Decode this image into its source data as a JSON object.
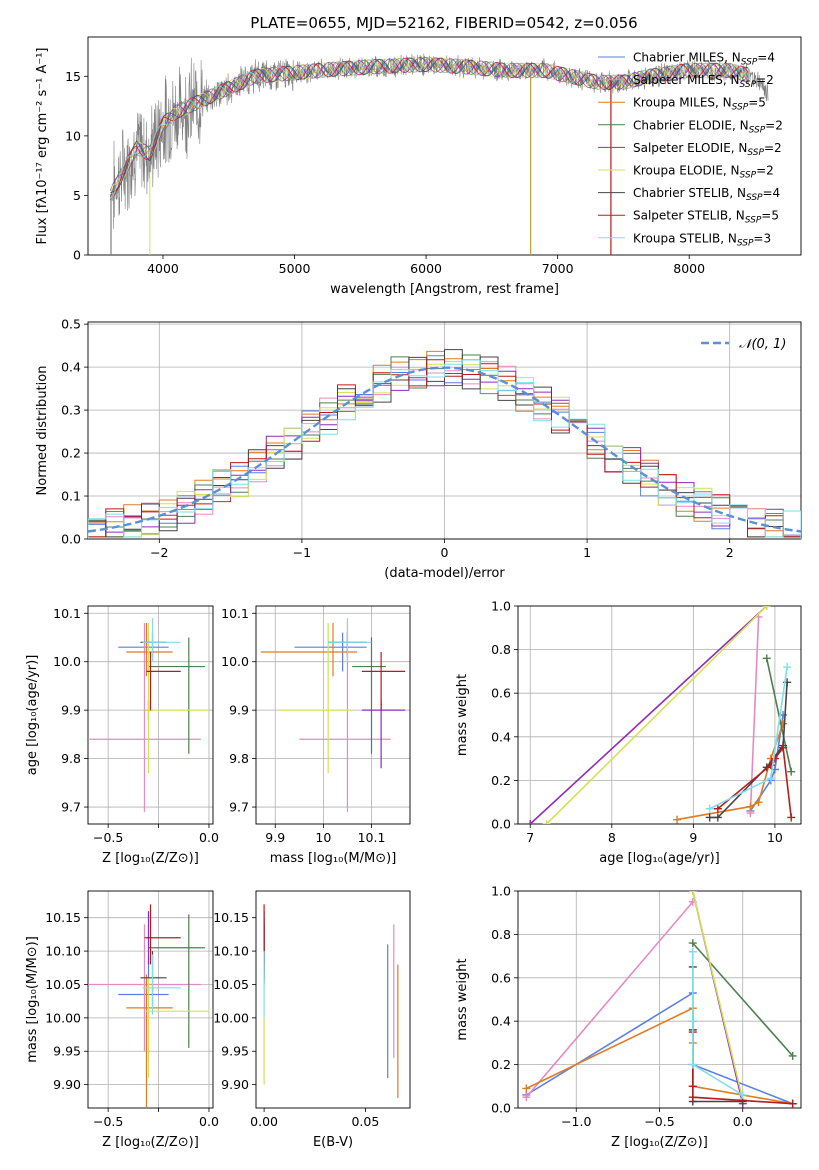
{
  "figure_title": "PLATE=0655, MJD=52162, FIBERID=0542, z=0.056",
  "colors": {
    "Chabrier MILES": "#5b7fe0",
    "Salpeter MILES": "#e78ac3",
    "Kroupa MILES": "#e07b25",
    "Chabrier ELODIE": "#4f7f4f",
    "Salpeter ELODIE": "#8e2db8",
    "Kroupa ELODIE": "#d4e157",
    "Chabrier STELIB": "#444444",
    "Salpeter STELIB": "#b71c1c",
    "Kroupa STELIB": "#80deea",
    "data": "#808080",
    "normal": "#5b8fd6"
  },
  "chart_data": [
    {
      "type": "line",
      "xlabel": "wavelength [Angstrom, rest frame]",
      "ylabel": "Flux [fλ10⁻¹⁷ erg cm⁻² s⁻¹ A⁻¹]",
      "xlim": [
        3430,
        8850
      ],
      "ylim": [
        0,
        18.3
      ],
      "xticks": [
        4000,
        5000,
        6000,
        7000,
        8000
      ],
      "yticks": [
        0,
        5,
        10,
        15
      ],
      "legend_position": "upper-right",
      "legend": [
        "Chabrier MILES, N_SSP=4",
        "Salpeter MILES, N_SSP=2",
        "Kroupa MILES, N_SSP=5",
        "Chabrier ELODIE, N_SSP=2",
        "Salpeter ELODIE, N_SSP=2",
        "Kroupa ELODIE, N_SSP=2",
        "Chabrier STELIB, N_SSP=4",
        "Salpeter STELIB, N_SSP=5",
        "Kroupa STELIB, N_SSP=3"
      ],
      "continuum": {
        "x": [
          3600,
          3700,
          3800,
          3900,
          4000,
          4100,
          4200,
          4300,
          4400,
          4500,
          4700,
          5000,
          5300,
          5600,
          6000,
          6300,
          6600,
          6900,
          7100,
          7300,
          7500,
          7700,
          8000,
          8300,
          8500,
          8600
        ],
        "y": [
          5,
          7,
          9,
          8.5,
          11,
          12,
          12.5,
          13,
          13.5,
          14,
          15,
          15.3,
          15.6,
          15.8,
          16,
          15.8,
          15.5,
          15.5,
          15,
          14.5,
          14.5,
          15,
          15.5,
          15.5,
          15,
          13.5
        ]
      },
      "gaps": [
        [
          6790,
          6800
        ],
        [
          7400,
          7410
        ]
      ]
    },
    {
      "type": "step",
      "xlabel": "(data-model)/error",
      "ylabel": "Normed distribution",
      "xlim": [
        -2.5,
        2.5
      ],
      "ylim": [
        0,
        0.505
      ],
      "xticks": [
        -2,
        -1,
        0,
        1,
        2
      ],
      "yticks": [
        0.0,
        0.1,
        0.2,
        0.3,
        0.4,
        0.5
      ],
      "grid": true,
      "bins": 40,
      "reference_curve": "N(0,1)",
      "legend": [
        "𝒩(0, 1)"
      ],
      "legend_position": "upper-right"
    },
    {
      "type": "scatter",
      "xlabel": "Z [log₁₀(Z/Z⊙)]",
      "ylabel": "age  [log₁₀(age/yr)]",
      "xlim": [
        -0.6,
        0.02
      ],
      "ylim": [
        9.665,
        10.115
      ],
      "xticks": [
        -0.5,
        -0.25,
        0.0
      ],
      "xticklabels": [
        "−0.5",
        "",
        "0.0"
      ],
      "yticks": [
        9.7,
        9.8,
        9.9,
        10.0,
        10.1
      ],
      "grid": true,
      "points": [
        {
          "model": "Chabrier MILES",
          "x": -0.3,
          "y": 10.03,
          "xerr": [
            0.15,
            0.1
          ],
          "yerr": [
            0.05,
            0.03
          ]
        },
        {
          "model": "Salpeter MILES",
          "x": -0.32,
          "y": 9.84,
          "xerr": [
            0.28,
            0.28
          ],
          "yerr": [
            0.15,
            0.24
          ]
        },
        {
          "model": "Kroupa MILES",
          "x": -0.31,
          "y": 10.02,
          "xerr": [
            0.1,
            0.13
          ],
          "yerr": [
            0.05,
            0.06
          ]
        },
        {
          "model": "Chabrier ELODIE",
          "x": -0.1,
          "y": 9.99,
          "xerr": [
            0.2,
            0.08
          ],
          "yerr": [
            0.18,
            0.06
          ]
        },
        {
          "model": "Salpeter ELODIE",
          "x": -0.3,
          "y": 9.9,
          "xerr": [
            0.02,
            0.02
          ],
          "yerr": [
            0.02,
            0.02
          ]
        },
        {
          "model": "Kroupa ELODIE",
          "x": -0.3,
          "y": 9.9,
          "xerr": [
            0.02,
            0.3
          ],
          "yerr": [
            0.13,
            0.18
          ]
        },
        {
          "model": "Chabrier STELIB",
          "x": -0.28,
          "y": 10.04,
          "xerr": [
            0.06,
            0.07
          ],
          "yerr": [
            0.03,
            0.02
          ]
        },
        {
          "model": "Salpeter STELIB",
          "x": -0.29,
          "y": 9.98,
          "xerr": [
            0.02,
            0.15
          ],
          "yerr": [
            0.08,
            0.04
          ]
        },
        {
          "model": "Kroupa STELIB",
          "x": -0.28,
          "y": 10.04,
          "xerr": [
            0.05,
            0.14
          ],
          "yerr": [
            0.04,
            0.05
          ]
        }
      ]
    },
    {
      "type": "scatter",
      "xlabel": "mass [log₁₀(M/M⊙)]",
      "ylabel": "",
      "xlim": [
        9.86,
        10.18
      ],
      "ylim": [
        9.665,
        10.115
      ],
      "xticks": [
        9.9,
        10.0,
        10.1
      ],
      "yticks": [
        9.7,
        9.8,
        9.9,
        10.0,
        10.1
      ],
      "grid": true,
      "points": [
        {
          "model": "Chabrier MILES",
          "x": 10.04,
          "y": 10.03,
          "xerr": [
            0.1,
            0.05
          ],
          "yerr": [
            0.05,
            0.03
          ]
        },
        {
          "model": "Salpeter MILES",
          "x": 10.05,
          "y": 9.84,
          "xerr": [
            0.1,
            0.09
          ],
          "yerr": [
            0.15,
            0.24
          ]
        },
        {
          "model": "Kroupa MILES",
          "x": 10.02,
          "y": 10.02,
          "xerr": [
            0.15,
            0.05
          ],
          "yerr": [
            0.05,
            0.06
          ]
        },
        {
          "model": "Chabrier ELODIE",
          "x": 10.1,
          "y": 9.99,
          "xerr": [
            0.04,
            0.03
          ],
          "yerr": [
            0.18,
            0.06
          ]
        },
        {
          "model": "Salpeter ELODIE",
          "x": 10.12,
          "y": 9.9,
          "xerr": [
            0.04,
            0.05
          ],
          "yerr": [
            0.12,
            0.02
          ]
        },
        {
          "model": "Kroupa ELODIE",
          "x": 10.01,
          "y": 9.9,
          "xerr": [
            0.1,
            0.05
          ],
          "yerr": [
            0.13,
            0.18
          ]
        },
        {
          "model": "Chabrier STELIB",
          "x": 10.05,
          "y": 10.04,
          "xerr": [
            0.04,
            0.04
          ],
          "yerr": [
            0.03,
            0.02
          ]
        },
        {
          "model": "Salpeter STELIB",
          "x": 10.12,
          "y": 9.98,
          "xerr": [
            0.04,
            0.05
          ],
          "yerr": [
            0.08,
            0.04
          ]
        },
        {
          "model": "Kroupa STELIB",
          "x": 10.05,
          "y": 10.04,
          "xerr": [
            0.04,
            0.05
          ],
          "yerr": [
            0.04,
            0.05
          ]
        }
      ]
    },
    {
      "type": "line",
      "xlabel": "age  [log₁₀(age/yr)]",
      "ylabel": "mass weight",
      "xlim": [
        6.85,
        10.32
      ],
      "ylim": [
        0,
        1.0
      ],
      "xticks": [
        7,
        8,
        9,
        10
      ],
      "yticks": [
        0.0,
        0.2,
        0.4,
        0.6,
        0.8,
        1.0
      ],
      "grid": true,
      "series": [
        {
          "name": "Chabrier MILES",
          "x": [
            9.7,
            9.95,
            10.0,
            10.1
          ],
          "y": [
            0.06,
            0.2,
            0.25,
            0.5
          ]
        },
        {
          "name": "Salpeter MILES",
          "x": [
            9.7,
            9.8
          ],
          "y": [
            0.05,
            0.95
          ]
        },
        {
          "name": "Kroupa MILES",
          "x": [
            8.8,
            9.7,
            9.8,
            9.95,
            10.1
          ],
          "y": [
            0.02,
            0.08,
            0.1,
            0.3,
            0.46
          ]
        },
        {
          "name": "Chabrier ELODIE",
          "x": [
            9.9,
            10.2
          ],
          "y": [
            0.76,
            0.24
          ]
        },
        {
          "name": "Salpeter ELODIE",
          "x": [
            7.0,
            9.9
          ],
          "y": [
            0.0,
            1.0
          ]
        },
        {
          "name": "Kroupa ELODIE",
          "x": [
            7.2,
            9.9
          ],
          "y": [
            0.0,
            1.0
          ]
        },
        {
          "name": "Chabrier STELIB",
          "x": [
            9.2,
            9.3,
            9.9,
            10.1,
            10.15
          ],
          "y": [
            0.03,
            0.03,
            0.26,
            0.36,
            0.65
          ]
        },
        {
          "name": "Salpeter STELIB",
          "x": [
            9.3,
            9.95,
            10.0,
            10.1,
            10.2
          ],
          "y": [
            0.07,
            0.27,
            0.3,
            0.35,
            0.03
          ]
        },
        {
          "name": "Kroupa STELIB",
          "x": [
            9.2,
            9.95,
            10.15
          ],
          "y": [
            0.07,
            0.21,
            0.72
          ]
        }
      ]
    },
    {
      "type": "scatter",
      "xlabel": "Z [log₁₀(Z/Z⊙)]",
      "ylabel": "mass [log₁₀(M/M⊙)]",
      "xlim": [
        -0.6,
        0.02
      ],
      "ylim": [
        9.865,
        10.19
      ],
      "xticks": [
        -0.5,
        -0.25,
        0.0
      ],
      "xticklabels": [
        "−0.5",
        "",
        "0.0"
      ],
      "yticks": [
        9.9,
        9.95,
        10.0,
        10.05,
        10.1,
        10.15
      ],
      "grid": true,
      "points": [
        {
          "model": "Chabrier MILES",
          "x": -0.3,
          "y": 10.035,
          "xerr": [
            0.15,
            0.1
          ],
          "yerr": [
            0.1,
            0.05
          ]
        },
        {
          "model": "Salpeter MILES",
          "x": -0.32,
          "y": 10.05,
          "xerr": [
            0.28,
            0.28
          ],
          "yerr": [
            0.1,
            0.09
          ]
        },
        {
          "model": "Kroupa MILES",
          "x": -0.31,
          "y": 10.015,
          "xerr": [
            0.1,
            0.13
          ],
          "yerr": [
            0.15,
            0.05
          ]
        },
        {
          "model": "Chabrier ELODIE",
          "x": -0.1,
          "y": 10.105,
          "xerr": [
            0.2,
            0.08
          ],
          "yerr": [
            0.15,
            0.05
          ]
        },
        {
          "model": "Salpeter ELODIE",
          "x": -0.3,
          "y": 10.12,
          "xerr": [
            0.02,
            0.02
          ],
          "yerr": [
            0.04,
            0.04
          ]
        },
        {
          "model": "Kroupa ELODIE",
          "x": -0.3,
          "y": 10.01,
          "xerr": [
            0.02,
            0.3
          ],
          "yerr": [
            0.1,
            0.05
          ]
        },
        {
          "model": "Chabrier STELIB",
          "x": -0.28,
          "y": 10.06,
          "xerr": [
            0.06,
            0.07
          ],
          "yerr": [
            0.04,
            0.04
          ]
        },
        {
          "model": "Salpeter STELIB",
          "x": -0.29,
          "y": 10.12,
          "xerr": [
            0.02,
            0.15
          ],
          "yerr": [
            0.04,
            0.05
          ]
        },
        {
          "model": "Kroupa STELIB",
          "x": -0.28,
          "y": 10.045,
          "xerr": [
            0.05,
            0.14
          ],
          "yerr": [
            0.04,
            0.05
          ]
        }
      ]
    },
    {
      "type": "scatter",
      "xlabel": "E(B-V)",
      "ylabel": "",
      "xlim": [
        -0.004,
        0.072
      ],
      "ylim": [
        9.865,
        10.19
      ],
      "xticks": [
        0.0,
        0.05
      ],
      "xticklabels": [
        "0.00",
        "0.05"
      ],
      "yticks": [
        9.9,
        9.95,
        10.0,
        10.05,
        10.1,
        10.15
      ],
      "grid": false,
      "points": [
        {
          "model": "Chabrier MILES",
          "x": 0.061,
          "y": 10.01,
          "xerr": [
            0,
            0
          ],
          "yerr": [
            0.1,
            0.1
          ]
        },
        {
          "model": "Salpeter MILES",
          "x": 0.064,
          "y": 10.04,
          "xerr": [
            0,
            0
          ],
          "yerr": [
            0.1,
            0.1
          ]
        },
        {
          "model": "Kroupa MILES",
          "x": 0.066,
          "y": 9.98,
          "xerr": [
            0,
            0
          ],
          "yerr": [
            0.1,
            0.1
          ]
        },
        {
          "model": "Chabrier ELODIE",
          "x": 0.0,
          "y": 10.1,
          "xerr": [
            0,
            0
          ],
          "yerr": [
            0.05,
            0.05
          ]
        },
        {
          "model": "Salpeter ELODIE",
          "x": 0.0,
          "y": 10.12,
          "xerr": [
            0,
            0
          ],
          "yerr": [
            0.04,
            0.04
          ]
        },
        {
          "model": "Kroupa ELODIE",
          "x": 0.0,
          "y": 9.95,
          "xerr": [
            0,
            0
          ],
          "yerr": [
            0.05,
            0.05
          ]
        },
        {
          "model": "Chabrier STELIB",
          "x": 0.0,
          "y": 10.1,
          "xerr": [
            0,
            0
          ],
          "yerr": [
            0.04,
            0.04
          ]
        },
        {
          "model": "Salpeter STELIB",
          "x": 0.0,
          "y": 10.12,
          "xerr": [
            0,
            0
          ],
          "yerr": [
            0.05,
            0.05
          ]
        },
        {
          "model": "Kroupa STELIB",
          "x": 0.0,
          "y": 10.05,
          "xerr": [
            0,
            0
          ],
          "yerr": [
            0.05,
            0.05
          ]
        }
      ]
    },
    {
      "type": "line",
      "xlabel": "Z [log₁₀(Z/Z⊙)]",
      "ylabel": "mass weight",
      "xlim": [
        -1.35,
        0.35
      ],
      "ylim": [
        0,
        1.0
      ],
      "xticks": [
        -1.0,
        -0.5,
        0.0
      ],
      "xticklabels": [
        "−1.0",
        "−0.5",
        "0.0"
      ],
      "yticks": [
        0.0,
        0.2,
        0.4,
        0.6,
        0.8,
        1.0
      ],
      "grid": true,
      "series": [
        {
          "name": "Chabrier MILES",
          "x": [
            -1.3,
            -0.3,
            -0.3,
            -0.3,
            0.3
          ],
          "y": [
            0.06,
            0.53,
            0.4,
            0.2,
            0.02
          ]
        },
        {
          "name": "Salpeter MILES",
          "x": [
            -1.3,
            -0.3
          ],
          "y": [
            0.05,
            0.95
          ]
        },
        {
          "name": "Kroupa MILES",
          "x": [
            -1.3,
            -0.3,
            -0.3,
            -0.3,
            0.3
          ],
          "y": [
            0.09,
            0.46,
            0.3,
            0.1,
            0.02
          ]
        },
        {
          "name": "Chabrier ELODIE",
          "x": [
            -0.3,
            0.3
          ],
          "y": [
            0.76,
            0.24
          ]
        },
        {
          "name": "Salpeter ELODIE",
          "x": [
            -0.3,
            0.0
          ],
          "y": [
            1.0,
            0.02
          ]
        },
        {
          "name": "Kroupa ELODIE",
          "x": [
            -0.3,
            0.0
          ],
          "y": [
            1.0,
            0.04
          ]
        },
        {
          "name": "Chabrier STELIB",
          "x": [
            -0.3,
            -0.3,
            -0.3,
            0.0
          ],
          "y": [
            0.65,
            0.36,
            0.03,
            0.03
          ]
        },
        {
          "name": "Salpeter STELIB",
          "x": [
            -0.3,
            -0.3,
            -0.3,
            0.3
          ],
          "y": [
            0.35,
            0.1,
            0.05,
            0.02
          ]
        },
        {
          "name": "Kroupa STELIB",
          "x": [
            -0.3,
            -0.3,
            -0.3,
            0.0
          ],
          "y": [
            0.72,
            0.4,
            0.2,
            0.06
          ]
        }
      ]
    }
  ]
}
